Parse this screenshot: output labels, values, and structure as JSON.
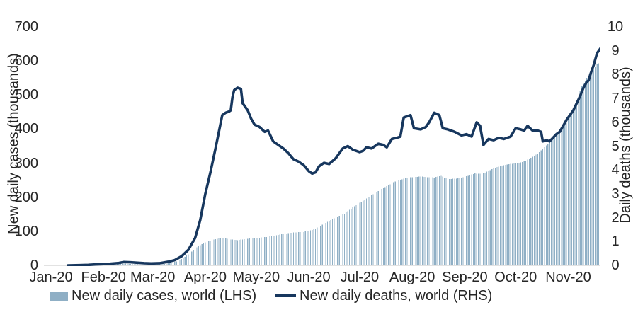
{
  "chart_data": {
    "type": "bar+line combo, dual axis, daily time series",
    "title": "",
    "x_axis": {
      "tick_labels": [
        "Jan-20",
        "Feb-20",
        "Mar-20",
        "Apr-20",
        "May-20",
        "Jun-20",
        "Jul-20",
        "Aug-20",
        "Sep-20",
        "Oct-20",
        "Nov-20"
      ],
      "start_date": "2020-01-01",
      "end_date": "2020-11-20"
    },
    "left_axis": {
      "label": "New daily cases (thousands)",
      "ticks": [
        0,
        100,
        200,
        300,
        400,
        500,
        600,
        700
      ],
      "range": [
        0,
        700
      ]
    },
    "right_axis": {
      "label": "Daily deaths (thousands)",
      "ticks": [
        0,
        1,
        2,
        3,
        4,
        5,
        6,
        7,
        8,
        9,
        10
      ],
      "range": [
        0,
        10
      ]
    },
    "grid": "off",
    "legend_position": "bottom",
    "baseline_color": "#d9d9d9",
    "text_color": "#262626",
    "series": [
      {
        "name": "New daily cases, world (LHS)",
        "type": "bar",
        "axis": "left",
        "color": "#8fafc5",
        "points": [
          [
            "2020-01-01",
            0.2
          ],
          [
            "2020-01-22",
            0.5
          ],
          [
            "2020-01-26",
            1.5
          ],
          [
            "2020-01-31",
            2
          ],
          [
            "2020-02-04",
            3
          ],
          [
            "2020-02-09",
            3
          ],
          [
            "2020-02-13",
            5
          ],
          [
            "2020-02-17",
            4
          ],
          [
            "2020-02-22",
            2.5
          ],
          [
            "2020-02-27",
            2
          ],
          [
            "2020-03-03",
            3
          ],
          [
            "2020-03-08",
            4.5
          ],
          [
            "2020-03-12",
            7
          ],
          [
            "2020-03-16",
            13
          ],
          [
            "2020-03-20",
            25
          ],
          [
            "2020-03-24",
            40
          ],
          [
            "2020-03-28",
            57
          ],
          [
            "2020-03-31",
            65
          ],
          [
            "2020-04-03",
            72
          ],
          [
            "2020-04-08",
            78
          ],
          [
            "2020-04-12",
            80
          ],
          [
            "2020-04-16",
            76
          ],
          [
            "2020-04-20",
            74
          ],
          [
            "2020-04-24",
            77
          ],
          [
            "2020-04-30",
            80
          ],
          [
            "2020-05-05",
            82
          ],
          [
            "2020-05-10",
            86
          ],
          [
            "2020-05-15",
            90
          ],
          [
            "2020-05-20",
            95
          ],
          [
            "2020-05-25",
            97
          ],
          [
            "2020-05-29",
            98
          ],
          [
            "2020-06-03",
            104
          ],
          [
            "2020-06-07",
            113
          ],
          [
            "2020-06-11",
            125
          ],
          [
            "2020-06-16",
            138
          ],
          [
            "2020-06-22",
            152
          ],
          [
            "2020-06-27",
            170
          ],
          [
            "2020-07-02",
            187
          ],
          [
            "2020-07-07",
            202
          ],
          [
            "2020-07-12",
            218
          ],
          [
            "2020-07-17",
            233
          ],
          [
            "2020-07-23",
            249
          ],
          [
            "2020-07-30",
            258
          ],
          [
            "2020-08-06",
            261
          ],
          [
            "2020-08-10",
            259
          ],
          [
            "2020-08-14",
            258
          ],
          [
            "2020-08-18",
            263
          ],
          [
            "2020-08-22",
            253
          ],
          [
            "2020-08-28",
            255
          ],
          [
            "2020-09-03",
            263
          ],
          [
            "2020-09-07",
            270
          ],
          [
            "2020-09-11",
            268
          ],
          [
            "2020-09-15",
            277
          ],
          [
            "2020-09-19",
            287
          ],
          [
            "2020-09-23",
            293
          ],
          [
            "2020-09-27",
            297
          ],
          [
            "2020-10-02",
            300
          ],
          [
            "2020-10-06",
            305
          ],
          [
            "2020-10-10",
            316
          ],
          [
            "2020-10-14",
            328
          ],
          [
            "2020-10-18",
            347
          ],
          [
            "2020-10-22",
            368
          ],
          [
            "2020-10-27",
            395
          ],
          [
            "2020-10-31",
            426
          ],
          [
            "2020-11-04",
            457
          ],
          [
            "2020-11-07",
            495
          ],
          [
            "2020-11-09",
            526
          ],
          [
            "2020-11-12",
            550
          ],
          [
            "2020-11-15",
            571
          ],
          [
            "2020-11-18",
            590
          ],
          [
            "2020-11-20",
            597
          ]
        ]
      },
      {
        "name": "New daily deaths, world (RHS)",
        "type": "line",
        "axis": "right",
        "color": "#17375e",
        "points": [
          [
            "2020-01-11",
            0
          ],
          [
            "2020-01-18",
            0.01
          ],
          [
            "2020-01-23",
            0.02
          ],
          [
            "2020-01-27",
            0.04
          ],
          [
            "2020-01-31",
            0.05
          ],
          [
            "2020-02-05",
            0.07
          ],
          [
            "2020-02-10",
            0.1
          ],
          [
            "2020-02-13",
            0.14
          ],
          [
            "2020-02-17",
            0.13
          ],
          [
            "2020-02-21",
            0.11
          ],
          [
            "2020-02-25",
            0.09
          ],
          [
            "2020-02-29",
            0.08
          ],
          [
            "2020-03-05",
            0.09
          ],
          [
            "2020-03-10",
            0.15
          ],
          [
            "2020-03-14",
            0.22
          ],
          [
            "2020-03-18",
            0.38
          ],
          [
            "2020-03-22",
            0.65
          ],
          [
            "2020-03-26",
            1.15
          ],
          [
            "2020-03-29",
            1.9
          ],
          [
            "2020-04-01",
            3.0
          ],
          [
            "2020-04-04",
            3.9
          ],
          [
            "2020-04-07",
            4.9
          ],
          [
            "2020-04-09",
            5.6
          ],
          [
            "2020-04-11",
            6.3
          ],
          [
            "2020-04-13",
            6.4
          ],
          [
            "2020-04-15",
            6.45
          ],
          [
            "2020-04-16",
            6.5
          ],
          [
            "2020-04-17",
            7.05
          ],
          [
            "2020-04-18",
            7.35
          ],
          [
            "2020-04-20",
            7.45
          ],
          [
            "2020-04-22",
            7.4
          ],
          [
            "2020-04-23",
            6.8
          ],
          [
            "2020-04-25",
            6.6
          ],
          [
            "2020-04-26",
            6.5
          ],
          [
            "2020-04-28",
            6.15
          ],
          [
            "2020-04-30",
            5.9
          ],
          [
            "2020-05-03",
            5.8
          ],
          [
            "2020-05-06",
            5.6
          ],
          [
            "2020-05-08",
            5.65
          ],
          [
            "2020-05-11",
            5.2
          ],
          [
            "2020-05-14",
            5.05
          ],
          [
            "2020-05-17",
            4.9
          ],
          [
            "2020-05-20",
            4.7
          ],
          [
            "2020-05-23",
            4.45
          ],
          [
            "2020-05-26",
            4.35
          ],
          [
            "2020-05-29",
            4.2
          ],
          [
            "2020-06-01",
            3.95
          ],
          [
            "2020-06-03",
            3.85
          ],
          [
            "2020-06-05",
            3.9
          ],
          [
            "2020-06-07",
            4.15
          ],
          [
            "2020-06-10",
            4.3
          ],
          [
            "2020-06-13",
            4.25
          ],
          [
            "2020-06-17",
            4.5
          ],
          [
            "2020-06-21",
            4.9
          ],
          [
            "2020-06-24",
            5.0
          ],
          [
            "2020-06-27",
            4.85
          ],
          [
            "2020-07-01",
            4.75
          ],
          [
            "2020-07-03",
            4.8
          ],
          [
            "2020-07-05",
            4.95
          ],
          [
            "2020-07-08",
            4.9
          ],
          [
            "2020-07-12",
            5.1
          ],
          [
            "2020-07-15",
            5.05
          ],
          [
            "2020-07-17",
            4.95
          ],
          [
            "2020-07-20",
            5.3
          ],
          [
            "2020-07-23",
            5.35
          ],
          [
            "2020-07-25",
            5.4
          ],
          [
            "2020-07-27",
            6.2
          ],
          [
            "2020-07-29",
            6.25
          ],
          [
            "2020-07-31",
            6.3
          ],
          [
            "2020-08-02",
            5.75
          ],
          [
            "2020-08-06",
            5.7
          ],
          [
            "2020-08-09",
            5.8
          ],
          [
            "2020-08-11",
            6.0
          ],
          [
            "2020-08-14",
            6.4
          ],
          [
            "2020-08-17",
            6.3
          ],
          [
            "2020-08-19",
            5.75
          ],
          [
            "2020-08-22",
            5.7
          ],
          [
            "2020-08-26",
            5.6
          ],
          [
            "2020-08-30",
            5.45
          ],
          [
            "2020-09-02",
            5.5
          ],
          [
            "2020-09-05",
            5.4
          ],
          [
            "2020-09-08",
            6.0
          ],
          [
            "2020-09-10",
            5.85
          ],
          [
            "2020-09-12",
            5.05
          ],
          [
            "2020-09-15",
            5.3
          ],
          [
            "2020-09-18",
            5.25
          ],
          [
            "2020-09-21",
            5.35
          ],
          [
            "2020-09-24",
            5.3
          ],
          [
            "2020-09-28",
            5.4
          ],
          [
            "2020-10-01",
            5.75
          ],
          [
            "2020-10-04",
            5.7
          ],
          [
            "2020-10-06",
            5.65
          ],
          [
            "2020-10-08",
            5.85
          ],
          [
            "2020-10-11",
            5.65
          ],
          [
            "2020-10-14",
            5.65
          ],
          [
            "2020-10-16",
            5.6
          ],
          [
            "2020-10-17",
            5.2
          ],
          [
            "2020-10-19",
            5.25
          ],
          [
            "2020-10-21",
            5.2
          ],
          [
            "2020-10-23",
            5.35
          ],
          [
            "2020-10-25",
            5.5
          ],
          [
            "2020-10-27",
            5.6
          ],
          [
            "2020-10-29",
            5.85
          ],
          [
            "2020-10-31",
            6.1
          ],
          [
            "2020-11-02",
            6.3
          ],
          [
            "2020-11-04",
            6.5
          ],
          [
            "2020-11-06",
            6.8
          ],
          [
            "2020-11-08",
            7.1
          ],
          [
            "2020-11-10",
            7.45
          ],
          [
            "2020-11-12",
            7.7
          ],
          [
            "2020-11-13",
            7.75
          ],
          [
            "2020-11-14",
            8.0
          ],
          [
            "2020-11-16",
            8.4
          ],
          [
            "2020-11-18",
            8.9
          ],
          [
            "2020-11-20",
            9.1
          ]
        ]
      }
    ]
  },
  "legend": {
    "cases_label": "New daily cases, world (LHS)",
    "deaths_label": "New daily deaths, world (RHS)"
  }
}
